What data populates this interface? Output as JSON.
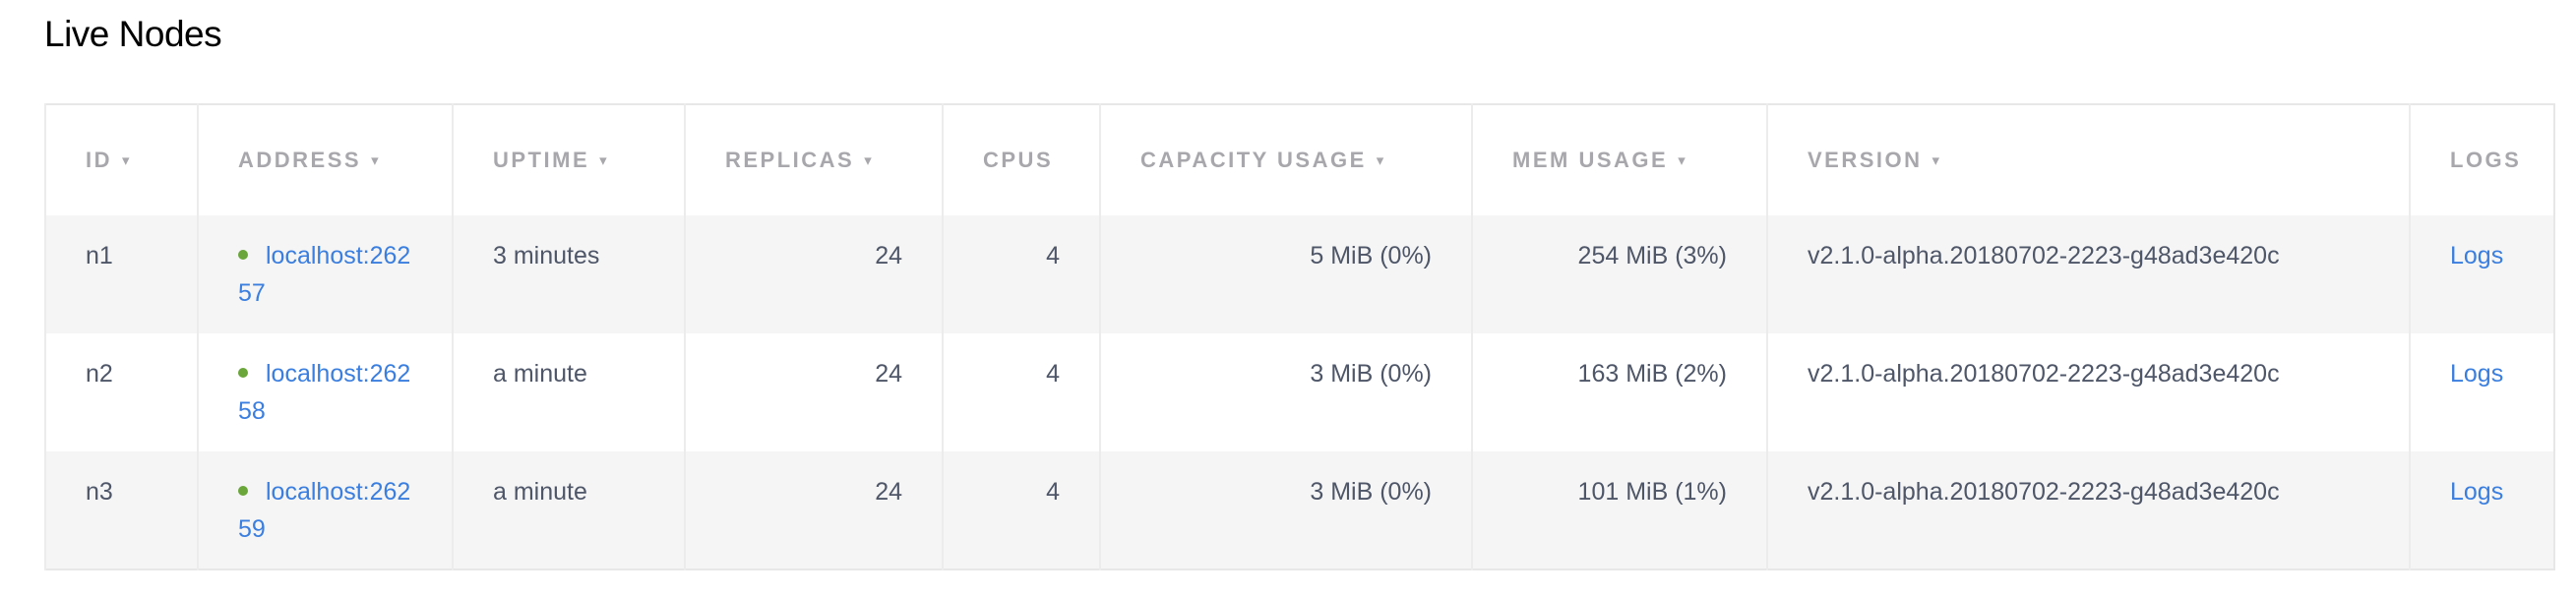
{
  "page": {
    "title": "Live Nodes"
  },
  "table": {
    "columns": [
      {
        "label": "ID",
        "sortable": true
      },
      {
        "label": "ADDRESS",
        "sortable": true
      },
      {
        "label": "UPTIME",
        "sortable": true
      },
      {
        "label": "REPLICAS",
        "sortable": true
      },
      {
        "label": "CPUS",
        "sortable": false
      },
      {
        "label": "CAPACITY USAGE",
        "sortable": true
      },
      {
        "label": "MEM USAGE",
        "sortable": true
      },
      {
        "label": "VERSION",
        "sortable": true
      },
      {
        "label": "LOGS",
        "sortable": false
      }
    ],
    "sort_caret": "▾",
    "rows": [
      {
        "id": "n1",
        "address": "localhost:26257",
        "status": "live",
        "uptime": "3 minutes",
        "replicas": "24",
        "cpus": "4",
        "capacity": "5 MiB (0%)",
        "mem": "254 MiB (3%)",
        "version": "v2.1.0-alpha.20180702-2223-g48ad3e420c",
        "logs": "Logs"
      },
      {
        "id": "n2",
        "address": "localhost:26258",
        "status": "live",
        "uptime": "a minute",
        "replicas": "24",
        "cpus": "4",
        "capacity": "3 MiB (0%)",
        "mem": "163 MiB (2%)",
        "version": "v2.1.0-alpha.20180702-2223-g48ad3e420c",
        "logs": "Logs"
      },
      {
        "id": "n3",
        "address": "localhost:26259",
        "status": "live",
        "uptime": "a minute",
        "replicas": "24",
        "cpus": "4",
        "capacity": "3 MiB (0%)",
        "mem": "101 MiB (1%)",
        "version": "v2.1.0-alpha.20180702-2223-g48ad3e420c",
        "logs": "Logs"
      }
    ]
  },
  "colors": {
    "link": "#3a7ee0",
    "live_dot": "#6aa63a",
    "stripe": "#f5f5f5"
  }
}
